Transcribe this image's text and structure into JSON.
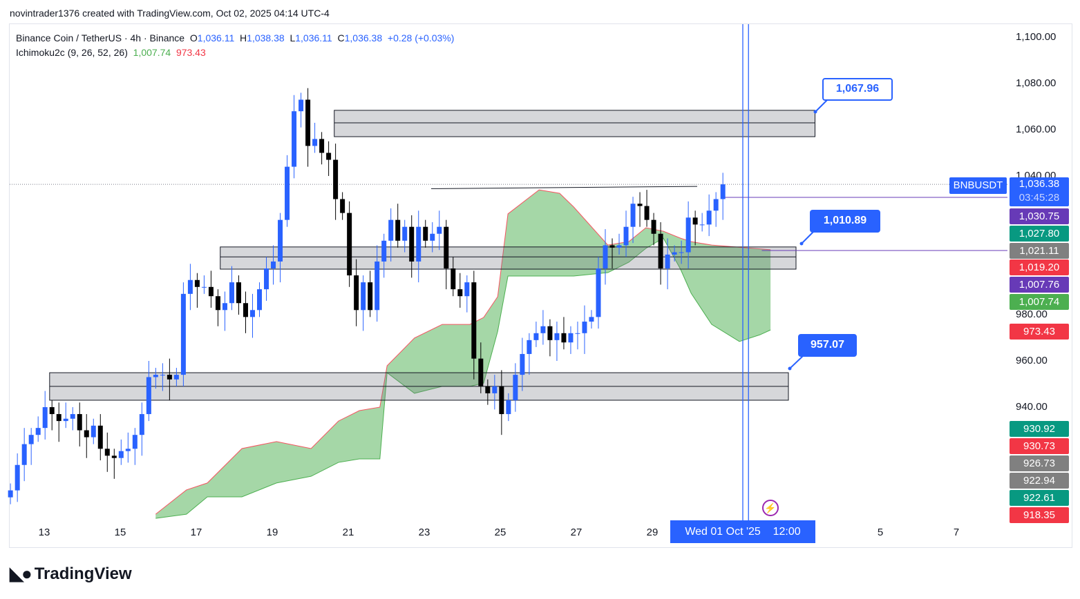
{
  "credit": "novintrader1376 created with TradingView.com, Oct 02, 2025 04:14 UTC-4",
  "legend": {
    "symbol": "Binance Coin / TetherUS · 4h · Binance",
    "o_label": "O",
    "o": "1,036.11",
    "h_label": "H",
    "h": "1,038.38",
    "l_label": "L",
    "l": "1,036.11",
    "c_label": "C",
    "c": "1,036.38",
    "change": "+0.28 (+0.03%)",
    "indicator": "Ichimoku2c (9, 26, 52, 26)",
    "ind_v1": "1,007.74",
    "ind_v2": "973.43"
  },
  "price_tags": [
    {
      "text": "1,036.38",
      "sub": "03:45:28",
      "color": "#2962ff"
    },
    {
      "text": "1,030.75",
      "color": "#673ab7"
    },
    {
      "text": "1,027.80",
      "color": "#089981"
    },
    {
      "text": "1,021.11",
      "color": "#808080"
    },
    {
      "text": "1,019.20",
      "color": "#f23645"
    },
    {
      "text": "1,007.76",
      "color": "#673ab7"
    },
    {
      "text": "1,007.74",
      "color": "#4caf50"
    },
    {
      "text": "973.43",
      "color": "#f23645"
    },
    {
      "text": "930.92",
      "color": "#089981"
    },
    {
      "text": "930.73",
      "color": "#f23645"
    },
    {
      "text": "926.73",
      "color": "#808080"
    },
    {
      "text": "922.94",
      "color": "#808080"
    },
    {
      "text": "922.61",
      "color": "#089981"
    },
    {
      "text": "918.35",
      "color": "#f23645"
    }
  ],
  "symbol_tag": "BNBUSDT",
  "callouts": [
    "1,067.96",
    "1,010.89",
    "957.07"
  ],
  "crosshair_label": {
    "date": "Wed 01 Oct '25",
    "time": "12:00"
  },
  "brand": "TradingView",
  "chart_data": {
    "type": "candlestick",
    "title": "Binance Coin / TetherUS · 4h · Binance",
    "ylim": [
      886,
      1110
    ],
    "y_ticks": [
      "1,100.00",
      "1,080.00",
      "1,060.00",
      "1,040.00",
      "980.00",
      "960.00",
      "940.00"
    ],
    "y_tick_values": [
      1100,
      1080,
      1060,
      1040,
      980,
      960,
      940
    ],
    "x_ticks": [
      "13",
      "15",
      "17",
      "19",
      "21",
      "23",
      "25",
      "27",
      "29",
      "5",
      "7"
    ],
    "x_tick_days": [
      13,
      15,
      17,
      19,
      21,
      23,
      25,
      27,
      29,
      35,
      37
    ],
    "candle_start_day": 12.13,
    "candle_step_days": 0.182,
    "closes": [
      904,
      915,
      924,
      928,
      931,
      940,
      937,
      934,
      935,
      937,
      930,
      927,
      932,
      922,
      919,
      918,
      921,
      922,
      928,
      937,
      953,
      954,
      954,
      952,
      954,
      989,
      995,
      992,
      992,
      988,
      982,
      985,
      994,
      985,
      979,
      982,
      991,
      1000,
      1003,
      1021,
      1044,
      1068,
      1073,
      1053,
      1056,
      1050,
      1047,
      1030,
      1024,
      997,
      982,
      994,
      982,
      1003,
      1012,
      1021,
      1012,
      1018,
      1003,
      1018,
      1012,
      1015,
      1018,
      1000,
      991,
      988,
      994,
      961,
      949,
      946,
      949,
      937,
      943,
      954,
      963,
      969,
      972,
      975,
      969,
      972,
      968,
      972,
      972,
      977,
      979,
      1000,
      1010,
      1009,
      1010,
      1018,
      1028,
      1027,
      1021,
      1015,
      1000,
      1006,
      1007,
      1007,
      1022,
      1019,
      1019,
      1025,
      1030,
      1036.38
    ],
    "cloud_upper": [
      [
        15.95,
        893.7
      ],
      [
        16.76,
        904.2
      ],
      [
        17.31,
        907.2
      ],
      [
        18.22,
        922.1
      ],
      [
        19.13,
        925.1
      ],
      [
        20.04,
        922.1
      ],
      [
        20.76,
        934.0
      ],
      [
        21.31,
        938.5
      ],
      [
        21.85,
        940.0
      ],
      [
        22.04,
        957.9
      ],
      [
        22.76,
        969.9
      ],
      [
        23.49,
        975.8
      ],
      [
        24.22,
        975.8
      ],
      [
        24.58,
        978.8
      ],
      [
        24.95,
        987.8
      ],
      [
        25.22,
        1023.6
      ],
      [
        26.04,
        1034.0
      ],
      [
        26.58,
        1032.5
      ],
      [
        26.95,
        1026.6
      ],
      [
        27.85,
        1010.1
      ],
      [
        28.4,
        1011.6
      ],
      [
        28.85,
        1017.6
      ],
      [
        29.31,
        1016.1
      ],
      [
        29.76,
        1013.1
      ],
      [
        30.04,
        1011.6
      ],
      [
        30.58,
        1010.1
      ],
      [
        32.13,
        1008.1
      ]
    ],
    "cloud_lower": [
      [
        15.95,
        891.9
      ],
      [
        16.76,
        893.7
      ],
      [
        17.31,
        901.2
      ],
      [
        18.22,
        901.2
      ],
      [
        19.13,
        907.2
      ],
      [
        20.04,
        910.1
      ],
      [
        20.76,
        916.1
      ],
      [
        21.31,
        917.6
      ],
      [
        21.85,
        917.6
      ],
      [
        22.04,
        954.9
      ],
      [
        22.76,
        946.0
      ],
      [
        23.49,
        949.0
      ],
      [
        24.22,
        949.0
      ],
      [
        24.58,
        950.4
      ],
      [
        24.95,
        972.8
      ],
      [
        25.22,
        996.7
      ],
      [
        26.04,
        996.7
      ],
      [
        26.95,
        996.7
      ],
      [
        27.85,
        998.2
      ],
      [
        28.4,
        1002.7
      ],
      [
        28.85,
        1008.7
      ],
      [
        29.31,
        1013.1
      ],
      [
        29.76,
        999.7
      ],
      [
        30.04,
        989.3
      ],
      [
        30.58,
        975.8
      ],
      [
        31.31,
        968.4
      ],
      [
        31.85,
        971.3
      ],
      [
        32.13,
        973.4
      ]
    ],
    "zones": [
      {
        "top": 1068.4,
        "bottom": 1057.0,
        "mid": 1063,
        "from": 20.65,
        "to": 33.3
      },
      {
        "top": 1009.3,
        "bottom": 999.7,
        "mid": 1005,
        "from": 17.65,
        "to": 32.8
      },
      {
        "top": 954.9,
        "bottom": 943.0,
        "mid": 949,
        "from": 13.16,
        "to": 32.6
      }
    ],
    "vlines_day": [
      31.4,
      31.55
    ],
    "hlines": [
      {
        "price": 1030.75,
        "from": 30.9,
        "color": "#673ab7"
      },
      {
        "price": 1007.76,
        "from": 31.9,
        "color": "#673ab7"
      }
    ]
  }
}
